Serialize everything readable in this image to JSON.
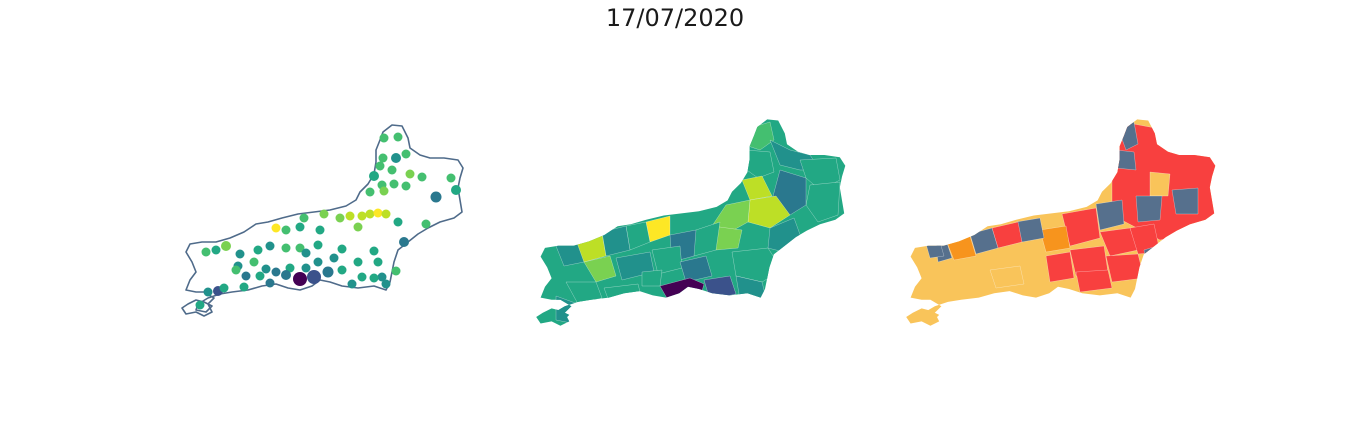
{
  "title": "17/07/2020",
  "colors": {
    "outline": "#4f6b8a",
    "viridis": [
      "#440154",
      "#3b528b",
      "#2a788e",
      "#21918c",
      "#22a884",
      "#44bf70",
      "#7ad151",
      "#bddf26",
      "#fde725"
    ],
    "risk": {
      "low": "#f9c45a",
      "medium": "#f7941d",
      "high": "#f8403f",
      "slate": "#56708d"
    }
  },
  "panels": [
    {
      "name": "point-map",
      "kind": "points"
    },
    {
      "name": "choropleth-map",
      "kind": "choropleth"
    },
    {
      "name": "risk-category-map",
      "kind": "categorical"
    }
  ]
}
